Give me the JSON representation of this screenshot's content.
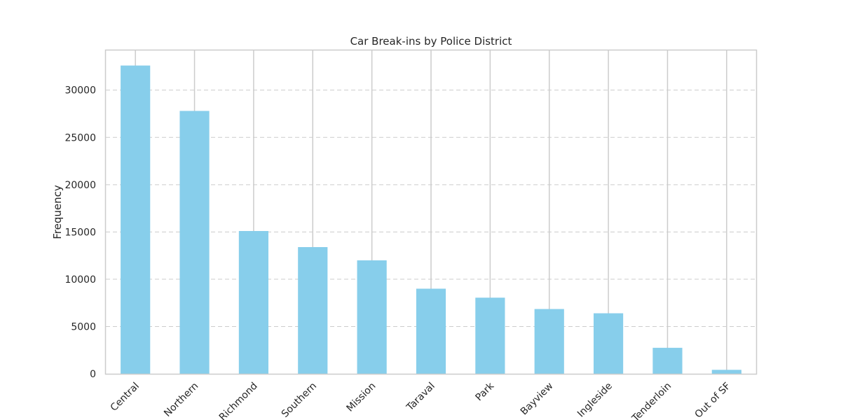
{
  "chart_data": {
    "type": "bar",
    "title": "Car Break-ins by Police District",
    "xlabel": "",
    "ylabel": "Frequency",
    "categories": [
      "Central",
      "Northern",
      "Richmond",
      "Southern",
      "Mission",
      "Taraval",
      "Park",
      "Bayview",
      "Ingleside",
      "Tenderloin",
      "Out of SF"
    ],
    "values": [
      32600,
      27800,
      15100,
      13400,
      12000,
      9000,
      8050,
      6850,
      6400,
      2750,
      420
    ],
    "ylim": [
      0,
      34200
    ],
    "yticks": [
      0,
      5000,
      10000,
      15000,
      20000,
      25000,
      30000
    ],
    "grid": {
      "y": "dashed",
      "x": "solid"
    },
    "legend": "none",
    "colors": {
      "bar": "#87ceeb",
      "grid": "#cccccc",
      "frame": "#cccccc",
      "text": "#262626"
    }
  }
}
